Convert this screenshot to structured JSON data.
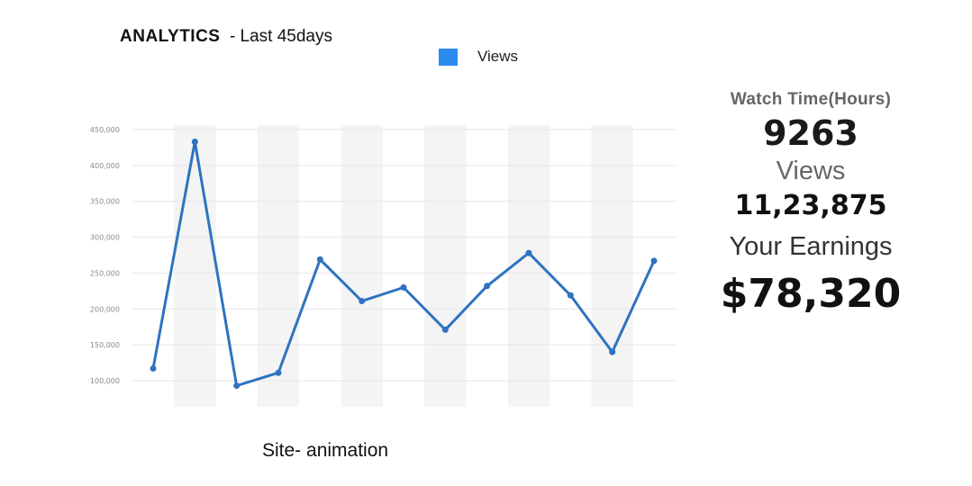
{
  "header": {
    "title": "ANALYTICS",
    "subtitle": "- Last 45days"
  },
  "legend": {
    "label": "Views",
    "color": "#2b8cf0"
  },
  "chart_data": {
    "type": "line",
    "title": "ANALYTICS - Last 45days",
    "xlabel": "Site- animation",
    "ylabel": "",
    "ylim": [
      100000,
      450000
    ],
    "yticks": [
      100000,
      150000,
      200000,
      250000,
      300000,
      350000,
      400000,
      450000
    ],
    "ytick_labels": [
      "100,000",
      "150,000",
      "200,000",
      "250,000",
      "300,000",
      "350,000",
      "400,000",
      "450,000"
    ],
    "grid": true,
    "legend_position": "top-center",
    "line_color": "#2f73c0",
    "series": [
      {
        "name": "Views",
        "values": [
          117000,
          433000,
          93000,
          111000,
          269000,
          211000,
          230000,
          171000,
          232000,
          278000,
          219000,
          140000,
          267000
        ]
      }
    ]
  },
  "stats": {
    "watch_time_label": "Watch Time(Hours)",
    "watch_time_value": "9263",
    "views_label": "Views",
    "views_value": "11,23,875",
    "earnings_label": "Your Earnings",
    "earnings_value": "$78,320"
  }
}
